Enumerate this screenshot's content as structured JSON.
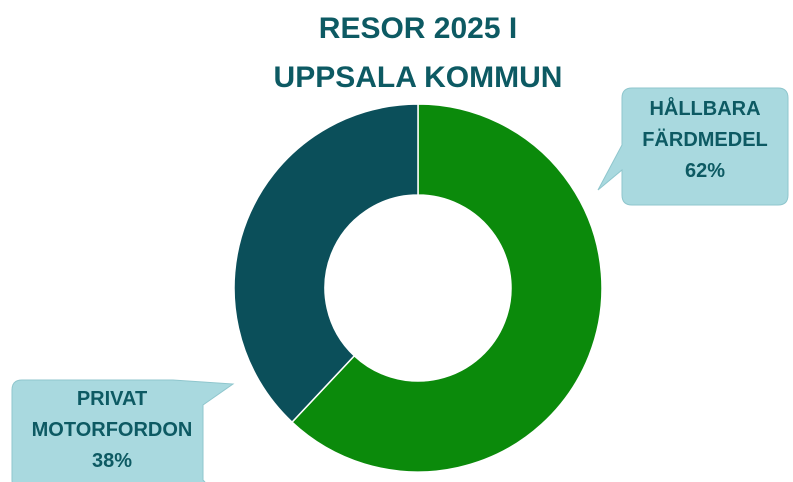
{
  "chart_data": {
    "type": "donut",
    "title": "RESOR 2025 I UPPSALA KOMMUN",
    "categories": [
      "HÅLLBARA FÄRDMEDEL",
      "PRIVAT MOTORFORDON"
    ],
    "values": [
      62,
      38
    ],
    "value_labels": [
      "62%",
      "38%"
    ],
    "colors": [
      "#0b8a0b",
      "#0b4f5a"
    ]
  }
}
